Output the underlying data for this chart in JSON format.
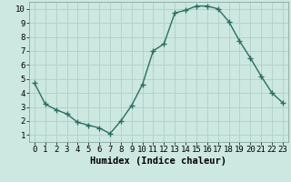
{
  "title": "",
  "xlabel": "Humidex (Indice chaleur)",
  "ylabel": "",
  "x": [
    0,
    1,
    2,
    3,
    4,
    5,
    6,
    7,
    8,
    9,
    10,
    11,
    12,
    13,
    14,
    15,
    16,
    17,
    18,
    19,
    20,
    21,
    22,
    23
  ],
  "y": [
    4.7,
    3.2,
    2.8,
    2.5,
    1.9,
    1.7,
    1.5,
    1.1,
    2.0,
    3.1,
    4.6,
    7.0,
    7.5,
    9.7,
    9.9,
    10.2,
    10.2,
    10.0,
    9.1,
    7.7,
    6.5,
    5.2,
    4.0,
    3.3
  ],
  "line_color": "#2a6e62",
  "marker": "+",
  "marker_size": 4,
  "bg_color": "#cce8e0",
  "grid_color": "#b0d0c8",
  "ylim": [
    0.5,
    10.5
  ],
  "xlim": [
    -0.5,
    23.5
  ],
  "yticks": [
    1,
    2,
    3,
    4,
    5,
    6,
    7,
    8,
    9,
    10
  ],
  "xticks": [
    0,
    1,
    2,
    3,
    4,
    5,
    6,
    7,
    8,
    9,
    10,
    11,
    12,
    13,
    14,
    15,
    16,
    17,
    18,
    19,
    20,
    21,
    22,
    23
  ],
  "xlabel_fontsize": 7.5,
  "tick_fontsize": 6.5,
  "line_width": 1.0,
  "marker_edge_width": 1.0
}
